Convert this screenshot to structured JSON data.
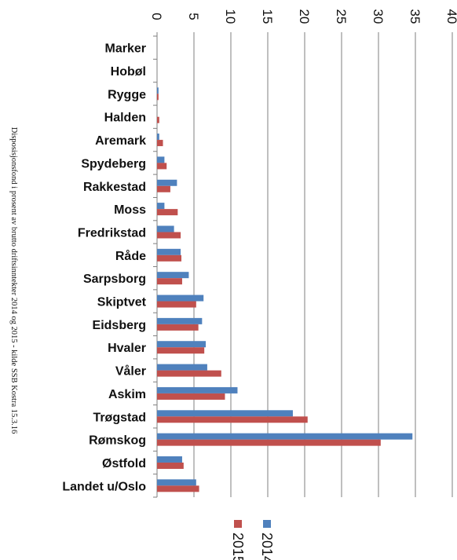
{
  "caption": "Disposisjonsfond i prosent av brutto driftsinntekter 2014 og 2015 - kilde SSB Kostra 15.3.16",
  "chart_data": {
    "type": "bar",
    "orientation": "horizontal",
    "rotated": "90deg-clockwise",
    "categories": [
      "Marker",
      "Hobøl",
      "Rygge",
      "Halden",
      "Aremark",
      "Spydeberg",
      "Rakkestad",
      "Moss",
      "Fredrikstad",
      "Råde",
      "Sarpsborg",
      "Skiptvet",
      "Eidsberg",
      "Hvaler",
      "Våler",
      "Askim",
      "Trøgstad",
      "Rømskog",
      "Østfold",
      "Landet u/Oslo"
    ],
    "series": [
      {
        "name": "2014",
        "color": "#4f81bd",
        "values": [
          0,
          0,
          0.2,
          0,
          0.3,
          1.0,
          2.7,
          1.0,
          2.3,
          3.2,
          4.3,
          6.3,
          6.1,
          6.6,
          6.8,
          10.9,
          18.4,
          34.6,
          3.4,
          5.3
        ]
      },
      {
        "name": "2015",
        "color": "#c0504d",
        "values": [
          0,
          0,
          0.2,
          0.3,
          0.8,
          1.3,
          1.8,
          2.8,
          3.2,
          3.3,
          3.4,
          5.3,
          5.6,
          6.4,
          8.7,
          9.2,
          20.4,
          30.3,
          3.6,
          5.7
        ]
      }
    ],
    "ticks": [
      0,
      5,
      10,
      15,
      20,
      25,
      30,
      35,
      40
    ],
    "ylim": [
      0,
      40
    ],
    "grid": true,
    "legend_placement": "bottom"
  }
}
